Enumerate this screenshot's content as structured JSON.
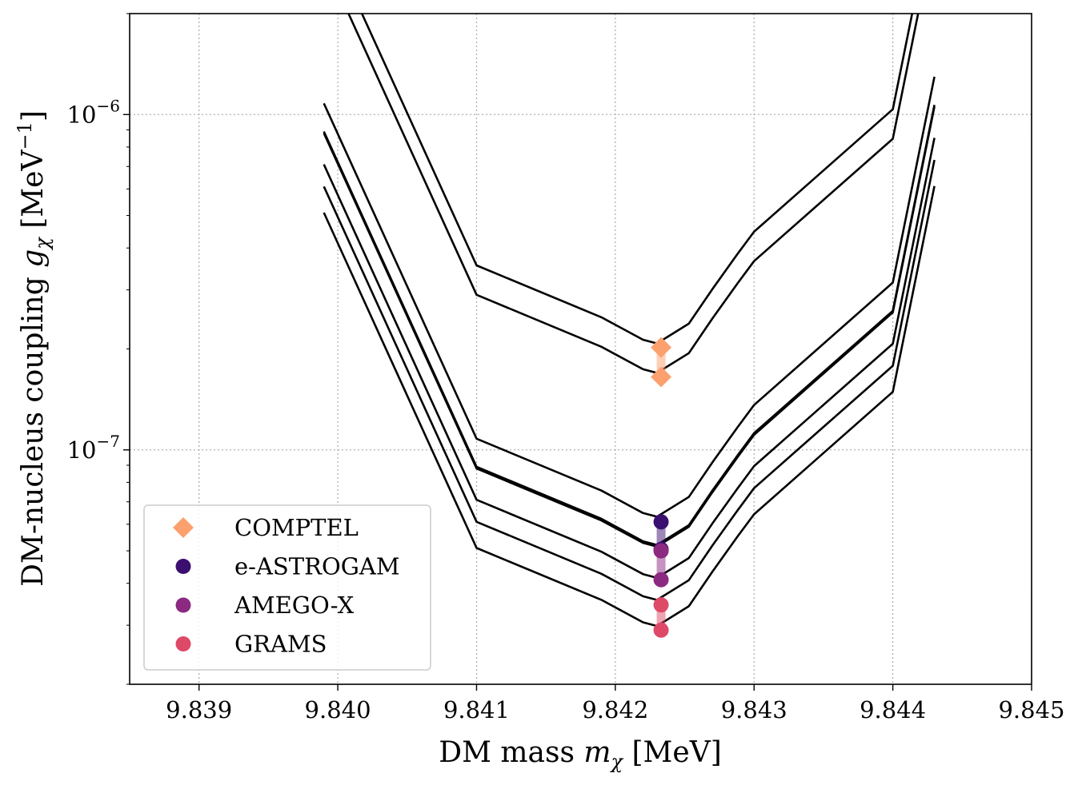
{
  "chart_data": {
    "type": "line",
    "title": "",
    "xlabel": "DM mass",
    "xlabel_var": "m",
    "xlabel_sub": "χ",
    "xlabel_unit": "[MeV]",
    "ylabel": "DM-nucleus coupling",
    "ylabel_var": "g",
    "ylabel_sub": "χ",
    "ylabel_unit_open": "[MeV",
    "ylabel_unit_exp": "−1",
    "ylabel_unit_close": "]",
    "xlim": [
      9.8385,
      9.845
    ],
    "ylim": [
      2e-08,
      2e-06
    ],
    "yscale": "log",
    "grid": true,
    "x_ticks": [
      {
        "value": 9.839,
        "label": "9.839"
      },
      {
        "value": 9.84,
        "label": "9.840"
      },
      {
        "value": 9.841,
        "label": "9.841"
      },
      {
        "value": 9.842,
        "label": "9.842"
      },
      {
        "value": 9.843,
        "label": "9.843"
      },
      {
        "value": 9.844,
        "label": "9.844"
      },
      {
        "value": 9.845,
        "label": "9.845"
      }
    ],
    "y_ticks": [
      {
        "value": 1e-06,
        "base": "10",
        "exp": "−6"
      },
      {
        "value": 1e-07,
        "base": "10",
        "exp": "−7"
      }
    ],
    "curve_x": [
      9.8399,
      9.841,
      9.8419,
      9.8422,
      9.8423,
      9.84253,
      9.8427,
      9.84288,
      9.843,
      9.844,
      9.8443
    ],
    "curve_shape": [
      10.0,
      1.0,
      0.7,
      0.6,
      0.585,
      0.67,
      0.85,
      1.08,
      1.26,
      2.92,
      12.0
    ],
    "curves": [
      {
        "name": "COMPTEL upper",
        "scale": 3.55e-07
      },
      {
        "name": "COMPTEL lower",
        "scale": 2.9e-07
      },
      {
        "name": "e-ASTROGAM upper",
        "scale": 1.08e-07
      },
      {
        "name": "e-ASTROGAM lower",
        "scale": 8.9e-08
      },
      {
        "name": "AMEGO-X upper",
        "scale": 8.8e-08
      },
      {
        "name": "AMEGO-X lower",
        "scale": 7.1e-08
      },
      {
        "name": "GRAMS upper",
        "scale": 6.1e-08
      },
      {
        "name": "GRAMS lower",
        "scale": 5.1e-08
      }
    ],
    "markers_x": 9.84233,
    "series": [
      {
        "name": "COMPTEL",
        "marker": "diamond",
        "color": "#fca06e",
        "values": [
          2.02e-07,
          1.65e-07
        ]
      },
      {
        "name": "e-ASTROGAM",
        "marker": "circle",
        "color": "#3b0f70",
        "values": [
          6.1e-08,
          5.05e-08
        ]
      },
      {
        "name": "AMEGO-X",
        "marker": "circle",
        "color": "#8c2981",
        "values": [
          5e-08,
          4.1e-08
        ]
      },
      {
        "name": "GRAMS",
        "marker": "circle",
        "color": "#de4968",
        "values": [
          3.45e-08,
          2.9e-08
        ]
      }
    ],
    "legend_position": "lower-left"
  }
}
